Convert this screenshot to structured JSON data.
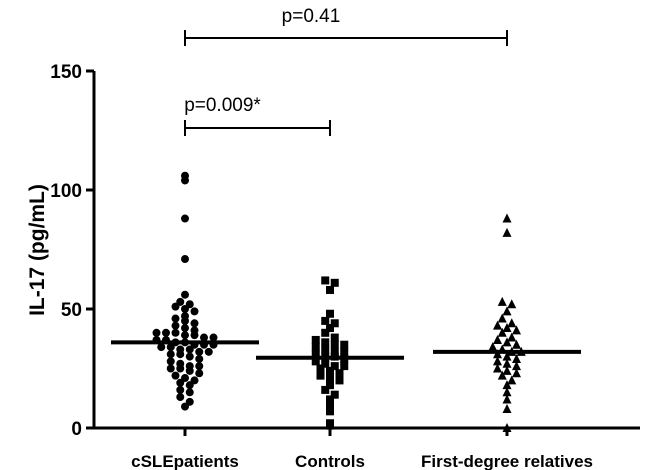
{
  "chart_data": {
    "type": "scatter",
    "title": "",
    "xlabel": "",
    "ylabel": "IL-17 (pg/mL)",
    "ylim": [
      0,
      150
    ],
    "yticks": [
      0,
      50,
      100,
      150
    ],
    "grid": false,
    "categories": [
      "cSLEpatients",
      "Controls",
      "First-degree relatives"
    ],
    "series": [
      {
        "category": "cSLEpatients",
        "marker": "circle",
        "median": 36,
        "values": [
          106,
          104,
          88,
          71,
          56,
          53,
          52,
          51,
          50,
          49,
          47,
          46,
          45,
          44,
          43,
          42,
          41,
          40,
          40,
          40,
          39,
          39,
          38,
          38,
          37,
          37,
          36,
          36,
          35,
          35,
          35,
          34,
          34,
          33,
          33,
          32,
          32,
          31,
          31,
          30,
          29,
          28,
          27,
          26,
          26,
          25,
          25,
          24,
          23,
          22,
          21,
          20,
          19,
          18,
          16,
          15,
          13,
          11,
          9
        ]
      },
      {
        "category": "Controls",
        "marker": "square",
        "median": 29.5,
        "values": [
          62,
          61,
          58,
          48,
          45,
          44,
          42,
          40,
          38,
          37,
          36,
          35,
          35,
          34,
          33,
          32,
          32,
          31,
          30,
          30,
          29,
          28,
          27,
          26,
          26,
          25,
          24,
          23,
          22,
          21,
          20,
          18,
          16,
          14,
          12,
          10,
          7,
          2,
          1
        ]
      },
      {
        "category": "First-degree relatives",
        "marker": "triangle",
        "median": 32,
        "values": [
          88,
          82,
          53,
          52,
          49,
          46,
          44,
          43,
          42,
          41,
          40,
          38,
          37,
          36,
          35,
          34,
          33,
          32,
          32,
          31,
          30,
          29,
          28,
          27,
          26,
          25,
          24,
          23,
          22,
          20,
          18,
          15,
          12,
          8,
          0
        ]
      }
    ],
    "annotations": [
      {
        "text": "p=0.41",
        "from": "cSLEpatients",
        "to": "First-degree relatives"
      },
      {
        "text": "p=0.009*",
        "from": "cSLEpatients",
        "to": "Controls"
      }
    ]
  }
}
